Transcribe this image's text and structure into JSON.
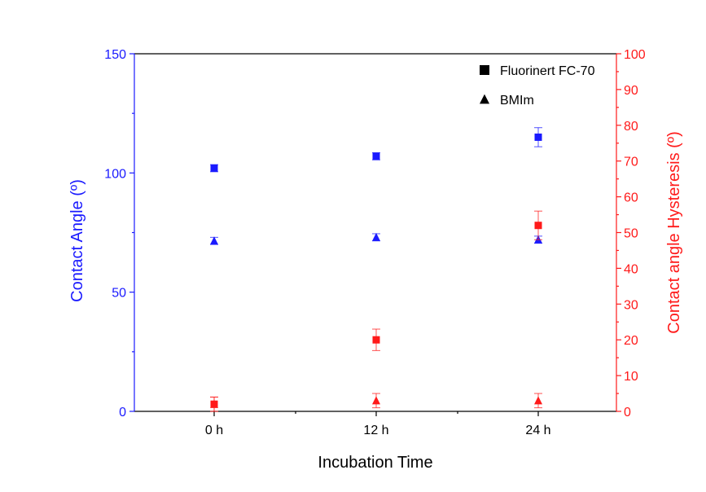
{
  "chart_data": {
    "type": "scatter",
    "categories": [
      "0 h",
      "12 h",
      "24 h"
    ],
    "xlabel": "Incubation Time",
    "ylabel_left": "Contact  Angle (º)",
    "ylabel_right": "Contact angle Hysteresis (º)",
    "ylim_left": [
      0,
      150
    ],
    "ylim_right": [
      0,
      100
    ],
    "yticks_left": [
      0,
      50,
      100,
      150
    ],
    "yticks_right": [
      0,
      10,
      20,
      30,
      40,
      50,
      60,
      70,
      80,
      90,
      100
    ],
    "grid": false,
    "legend": {
      "position": "top-right",
      "entries": [
        {
          "name": "Fluorinert FC-70",
          "marker": "square"
        },
        {
          "name": "BMIm",
          "marker": "triangle"
        }
      ]
    },
    "series": [
      {
        "name": "Fluorinert FC-70",
        "metric": "contact angle",
        "axis": "left",
        "marker": "square",
        "color": "#1a1aff",
        "values": [
          102,
          107,
          115
        ],
        "errors": [
          1.5,
          1.5,
          4
        ]
      },
      {
        "name": "BMIm",
        "metric": "contact angle",
        "axis": "left",
        "marker": "triangle",
        "color": "#1a1aff",
        "values": [
          71.5,
          73,
          72
        ],
        "errors": [
          1.5,
          1.5,
          1.5
        ]
      },
      {
        "name": "Fluorinert FC-70",
        "metric": "hysteresis",
        "axis": "right",
        "marker": "square",
        "color": "#ff1a1a",
        "values": [
          2,
          20,
          52
        ],
        "errors": [
          2,
          3,
          4
        ]
      },
      {
        "name": "BMIm",
        "metric": "hysteresis",
        "axis": "right",
        "marker": "triangle",
        "color": "#ff1a1a",
        "values": [
          2,
          3,
          3
        ],
        "errors": [
          2,
          2,
          2
        ]
      }
    ],
    "colors": {
      "left_axis": "#1a1aff",
      "right_axis": "#ff1a1a",
      "frame": "#000000"
    }
  }
}
